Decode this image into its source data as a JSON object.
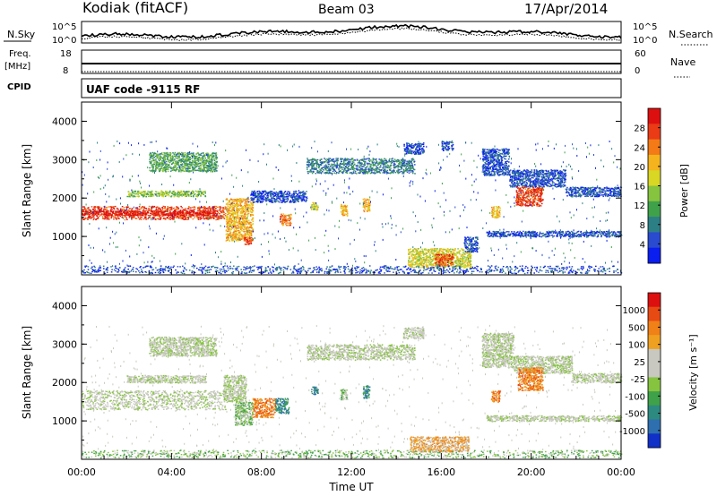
{
  "header": {
    "station": "Kodiak (fitACF)",
    "beam": "Beam 03",
    "date": "17/Apr/2014"
  },
  "noise_panel": {
    "left_label": "N.Sky",
    "right_label": "N.Search",
    "left_ticks": [
      "10^5",
      "10^0"
    ],
    "right_ticks": [
      "10^5",
      "10^0"
    ]
  },
  "freq_panel": {
    "left_label": "Freq.",
    "left_unit": "[MHz]",
    "left_ticks": [
      "18",
      "8"
    ],
    "right_label": "Nave",
    "right_ticks": [
      "60",
      "0"
    ]
  },
  "cpid_panel": {
    "label": "CPID",
    "text": "UAF code -9115 RF"
  },
  "chart_data": [
    {
      "type": "heatmap",
      "ylabel": "Slant Range [km]",
      "ylim": [
        0,
        4500
      ],
      "yticks": [
        "4000",
        "3000",
        "2000",
        "1000"
      ],
      "xlim": [
        0,
        24
      ],
      "colorbar": {
        "label": "Power [dB]",
        "ticks": [
          "28",
          "24",
          "20",
          "16",
          "12",
          "8",
          "4"
        ],
        "colors": [
          "#0a1ef0",
          "#2a4bd0",
          "#2d7f86",
          "#3fa14a",
          "#86c440",
          "#d9d624",
          "#f5b41e",
          "#f37a16",
          "#ea3b16",
          "#dd0f0f"
        ]
      },
      "bands": [
        {
          "t0": 0.0,
          "t1": 6.4,
          "r0": 1450,
          "r1": 1800,
          "level": 8
        },
        {
          "t0": 0.0,
          "t1": 6.0,
          "r0": 1560,
          "r1": 1680,
          "level": 9
        },
        {
          "t0": 6.4,
          "t1": 7.6,
          "r0": 900,
          "r1": 2000,
          "level": 6
        },
        {
          "t0": 7.2,
          "t1": 7.6,
          "r0": 800,
          "r1": 1000,
          "level": 8
        },
        {
          "t0": 2.0,
          "t1": 5.5,
          "r0": 2050,
          "r1": 2200,
          "level": 4
        },
        {
          "t0": 3.0,
          "t1": 6.0,
          "r0": 2700,
          "r1": 3200,
          "level": 3
        },
        {
          "t0": 7.5,
          "t1": 10.0,
          "r0": 1900,
          "r1": 2200,
          "level": 1
        },
        {
          "t0": 10.0,
          "t1": 14.8,
          "r0": 2650,
          "r1": 3050,
          "level": 2
        },
        {
          "t0": 8.8,
          "t1": 9.3,
          "r0": 1300,
          "r1": 1600,
          "level": 7
        },
        {
          "t0": 10.2,
          "t1": 10.5,
          "r0": 1700,
          "r1": 1900,
          "level": 5
        },
        {
          "t0": 11.5,
          "t1": 11.8,
          "r0": 1550,
          "r1": 1850,
          "level": 6
        },
        {
          "t0": 12.5,
          "t1": 12.8,
          "r0": 1650,
          "r1": 2000,
          "level": 6
        },
        {
          "t0": 14.5,
          "t1": 17.3,
          "r0": 200,
          "r1": 700,
          "level": 5
        },
        {
          "t0": 15.7,
          "t1": 16.5,
          "r0": 250,
          "r1": 550,
          "level": 8
        },
        {
          "t0": 17.0,
          "t1": 17.6,
          "r0": 600,
          "r1": 1000,
          "level": 1
        },
        {
          "t0": 16.0,
          "t1": 16.5,
          "r0": 3250,
          "r1": 3500,
          "level": 1
        },
        {
          "t0": 14.3,
          "t1": 15.2,
          "r0": 3150,
          "r1": 3450,
          "level": 1
        },
        {
          "t0": 17.8,
          "t1": 19.0,
          "r0": 2600,
          "r1": 3300,
          "level": 1
        },
        {
          "t0": 19.0,
          "t1": 21.5,
          "r0": 2300,
          "r1": 2750,
          "level": 1
        },
        {
          "t0": 21.5,
          "t1": 24.0,
          "r0": 2050,
          "r1": 2300,
          "level": 1
        },
        {
          "t0": 18.2,
          "t1": 18.6,
          "r0": 1500,
          "r1": 1800,
          "level": 6
        },
        {
          "t0": 19.3,
          "t1": 20.5,
          "r0": 1800,
          "r1": 2300,
          "level": 8
        },
        {
          "t0": 18.0,
          "t1": 24.0,
          "r0": 1000,
          "r1": 1150,
          "level": 1
        },
        {
          "t0": 0.0,
          "t1": 24.0,
          "r0": 50,
          "r1": 250,
          "level": 1
        }
      ]
    },
    {
      "type": "heatmap",
      "ylabel": "Slant Range [km]",
      "xlabel": "Time UT",
      "ylim": [
        0,
        4500
      ],
      "yticks": [
        "4000",
        "3000",
        "2000",
        "1000"
      ],
      "xticks": [
        "00:00",
        "04:00",
        "08:00",
        "12:00",
        "16:00",
        "20:00",
        "00:00"
      ],
      "xlim": [
        0,
        24
      ],
      "colorbar": {
        "label": "Velocity [m s⁻¹]",
        "ticks": [
          "1000",
          "500",
          "100",
          "25",
          "-25",
          "-100",
          "-500",
          "-1000"
        ],
        "colors": [
          "#1030c8",
          "#2e6fb0",
          "#2d8a80",
          "#3fa14a",
          "#86c440",
          "#c8c8c0",
          "#c8c8c0",
          "#f0a020",
          "#f08018",
          "#e84a14",
          "#dd0f0f"
        ]
      },
      "bands": [
        {
          "t0": 0.0,
          "t1": 6.4,
          "r0": 1300,
          "r1": 1800,
          "level": 5
        },
        {
          "t0": 2.0,
          "t1": 5.5,
          "r0": 2000,
          "r1": 2200,
          "level": 5
        },
        {
          "t0": 3.0,
          "t1": 6.0,
          "r0": 2700,
          "r1": 3200,
          "level": 5
        },
        {
          "t0": 6.3,
          "t1": 7.3,
          "r0": 1500,
          "r1": 2200,
          "level": 5
        },
        {
          "t0": 6.8,
          "t1": 7.6,
          "r0": 900,
          "r1": 1500,
          "level": 4
        },
        {
          "t0": 7.6,
          "t1": 8.6,
          "r0": 1100,
          "r1": 1600,
          "level": 8
        },
        {
          "t0": 8.6,
          "t1": 9.2,
          "r0": 1200,
          "r1": 1600,
          "level": 2
        },
        {
          "t0": 10.0,
          "t1": 14.8,
          "r0": 2600,
          "r1": 3000,
          "level": 5
        },
        {
          "t0": 10.2,
          "t1": 10.5,
          "r0": 1700,
          "r1": 1900,
          "level": 2
        },
        {
          "t0": 11.5,
          "t1": 11.8,
          "r0": 1550,
          "r1": 1850,
          "level": 4
        },
        {
          "t0": 12.5,
          "t1": 12.8,
          "r0": 1600,
          "r1": 1950,
          "level": 2
        },
        {
          "t0": 14.6,
          "t1": 17.2,
          "r0": 200,
          "r1": 600,
          "level": 7
        },
        {
          "t0": 14.3,
          "t1": 15.2,
          "r0": 3150,
          "r1": 3450,
          "level": 5
        },
        {
          "t0": 17.8,
          "t1": 19.2,
          "r0": 2400,
          "r1": 3300,
          "level": 5
        },
        {
          "t0": 19.2,
          "t1": 21.8,
          "r0": 2250,
          "r1": 2700,
          "level": 5
        },
        {
          "t0": 21.8,
          "t1": 24.0,
          "r0": 2000,
          "r1": 2250,
          "level": 5
        },
        {
          "t0": 18.2,
          "t1": 18.6,
          "r0": 1500,
          "r1": 1800,
          "level": 8
        },
        {
          "t0": 19.4,
          "t1": 20.5,
          "r0": 1800,
          "r1": 2400,
          "level": 8
        },
        {
          "t0": 18.0,
          "t1": 24.0,
          "r0": 1000,
          "r1": 1150,
          "level": 5
        },
        {
          "t0": 0.0,
          "t1": 24.0,
          "r0": 50,
          "r1": 250,
          "level": 4
        }
      ]
    }
  ]
}
